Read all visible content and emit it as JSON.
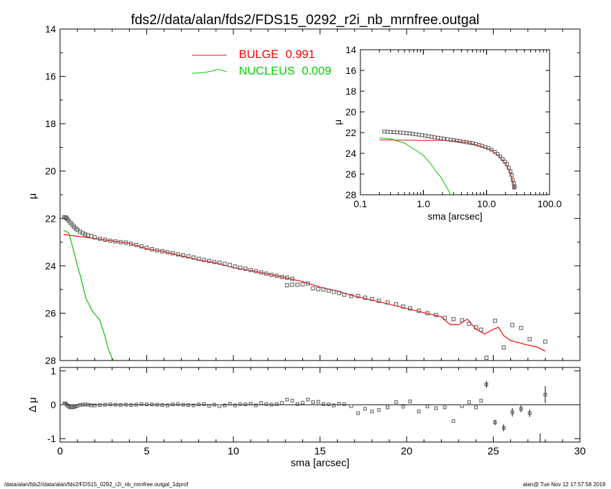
{
  "title": "fds2//data/alan/fds2/FDS15_0292_r2i_nb_mrnfree.outgal",
  "footer": {
    "left": "/data/alan/fds2//data/alan/fds2/FDS15_0292_r2i_nb_mrnfree.outgal_1dprof",
    "right": "alan@  Tue Nov 12 17:57:58 2019"
  },
  "legend": [
    {
      "label": "BULGE",
      "value": "0.991",
      "color": "#ff0000"
    },
    {
      "label": "NUCLEUS",
      "value": "0.009",
      "color": "#00d000"
    }
  ],
  "chart_data": [
    {
      "id": "main",
      "type": "scatter",
      "xlabel": "",
      "ylabel": "μ",
      "xlim": [
        0,
        30
      ],
      "ylim": [
        28,
        14
      ],
      "y_inverted": true,
      "yticks": [
        "14",
        "16",
        "18",
        "20",
        "22",
        "24",
        "26",
        "28"
      ],
      "points": [
        [
          0.24,
          21.95
        ],
        [
          0.3,
          21.95
        ],
        [
          0.36,
          21.98
        ],
        [
          0.42,
          22.03
        ],
        [
          0.5,
          22.1
        ],
        [
          0.6,
          22.18
        ],
        [
          0.7,
          22.27
        ],
        [
          0.8,
          22.35
        ],
        [
          0.9,
          22.42
        ],
        [
          1.0,
          22.48
        ],
        [
          1.15,
          22.56
        ],
        [
          1.3,
          22.62
        ],
        [
          1.45,
          22.67
        ],
        [
          1.6,
          22.71
        ],
        [
          1.8,
          22.75
        ],
        [
          2.0,
          22.8
        ],
        [
          2.3,
          22.86
        ],
        [
          2.6,
          22.9
        ],
        [
          2.9,
          22.94
        ],
        [
          3.2,
          22.97
        ],
        [
          3.5,
          23.0
        ],
        [
          3.8,
          23.02
        ],
        [
          4.1,
          23.07
        ],
        [
          4.4,
          23.12
        ],
        [
          4.7,
          23.18
        ],
        [
          5.0,
          23.24
        ],
        [
          5.3,
          23.3
        ],
        [
          5.6,
          23.35
        ],
        [
          5.9,
          23.39
        ],
        [
          6.2,
          23.43
        ],
        [
          6.5,
          23.47
        ],
        [
          6.8,
          23.52
        ],
        [
          7.1,
          23.56
        ],
        [
          7.4,
          23.6
        ],
        [
          7.7,
          23.65
        ],
        [
          8.0,
          23.7
        ],
        [
          8.3,
          23.75
        ],
        [
          8.6,
          23.79
        ],
        [
          8.9,
          23.84
        ],
        [
          9.2,
          23.87
        ],
        [
          9.5,
          23.92
        ],
        [
          9.8,
          23.96
        ],
        [
          10.1,
          24.03
        ],
        [
          10.4,
          24.08
        ],
        [
          10.7,
          24.12
        ],
        [
          11.0,
          24.18
        ],
        [
          11.3,
          24.23
        ],
        [
          11.6,
          24.28
        ],
        [
          11.9,
          24.33
        ],
        [
          12.2,
          24.38
        ],
        [
          12.5,
          24.42
        ],
        [
          12.8,
          24.47
        ],
        [
          13.1,
          24.5
        ],
        [
          13.4,
          24.55
        ],
        [
          13.1,
          24.82
        ],
        [
          13.4,
          24.8
        ],
        [
          13.7,
          24.8
        ],
        [
          14.0,
          24.78
        ],
        [
          14.3,
          24.75
        ],
        [
          14.6,
          24.95
        ],
        [
          14.9,
          24.98
        ],
        [
          15.2,
          25.0
        ],
        [
          15.5,
          25.05
        ],
        [
          15.8,
          25.1
        ],
        [
          16.1,
          25.15
        ],
        [
          16.4,
          25.22
        ],
        [
          16.8,
          25.28
        ],
        [
          17.2,
          25.28
        ],
        [
          17.6,
          25.35
        ],
        [
          18.0,
          25.4
        ],
        [
          18.4,
          25.48
        ],
        [
          18.9,
          25.55
        ],
        [
          19.4,
          25.62
        ],
        [
          19.8,
          25.72
        ],
        [
          20.2,
          25.8
        ],
        [
          20.7,
          25.9
        ],
        [
          21.2,
          26.0
        ],
        [
          21.7,
          26.08
        ],
        [
          22.2,
          26.2
        ],
        [
          22.7,
          26.25
        ],
        [
          23.2,
          26.3
        ],
        [
          23.6,
          26.45
        ],
        [
          24.0,
          26.6
        ],
        [
          24.3,
          26.7
        ],
        [
          24.6,
          27.88
        ],
        [
          25.1,
          26.32
        ],
        [
          25.6,
          27.45
        ],
        [
          26.1,
          26.5
        ],
        [
          26.6,
          26.62
        ],
        [
          27.1,
          27.1
        ],
        [
          28.0,
          27.2
        ]
      ],
      "lines": [
        {
          "name": "BULGE",
          "color": "#ff0000",
          "points": [
            [
              0.2,
              22.68
            ],
            [
              1.5,
              22.8
            ],
            [
              2.0,
              22.85
            ],
            [
              3.0,
              22.95
            ],
            [
              4.0,
              23.05
            ],
            [
              5.0,
              23.28
            ],
            [
              6.0,
              23.4
            ],
            [
              7.0,
              23.58
            ],
            [
              8.0,
              23.75
            ],
            [
              9.0,
              23.88
            ],
            [
              10.0,
              24.08
            ],
            [
              11.0,
              24.2
            ],
            [
              12.0,
              24.35
            ],
            [
              13.0,
              24.5
            ],
            [
              14.0,
              24.67
            ],
            [
              15.0,
              24.9
            ],
            [
              16.0,
              25.07
            ],
            [
              17.0,
              25.28
            ],
            [
              18.0,
              25.45
            ],
            [
              19.0,
              25.62
            ],
            [
              20.0,
              25.8
            ],
            [
              21.0,
              25.98
            ],
            [
              22.0,
              26.15
            ],
            [
              22.5,
              26.48
            ],
            [
              23.0,
              26.48
            ],
            [
              23.5,
              26.25
            ],
            [
              24.0,
              26.68
            ],
            [
              24.5,
              26.88
            ],
            [
              25.0,
              26.68
            ],
            [
              25.3,
              26.6
            ],
            [
              25.6,
              26.95
            ],
            [
              26.0,
              27.15
            ],
            [
              26.5,
              27.25
            ],
            [
              27.0,
              27.35
            ],
            [
              27.5,
              27.42
            ],
            [
              28.0,
              27.6
            ]
          ]
        },
        {
          "name": "NUCLEUS",
          "color": "#00c000",
          "points": [
            [
              0.2,
              22.5
            ],
            [
              0.5,
              22.6
            ],
            [
              0.8,
              23.4
            ],
            [
              1.0,
              24.0
            ],
            [
              1.2,
              24.5
            ],
            [
              1.5,
              25.4
            ],
            [
              1.9,
              25.95
            ],
            [
              2.3,
              26.3
            ],
            [
              2.6,
              27.0
            ],
            [
              2.8,
              27.55
            ],
            [
              3.0,
              27.9
            ],
            [
              3.1,
              28.0
            ]
          ]
        }
      ]
    },
    {
      "id": "residuals",
      "type": "scatter",
      "xlabel": "sma [arcsec]",
      "ylabel": "Δ μ",
      "xlim": [
        0,
        30
      ],
      "ylim": [
        -1.1,
        1.1
      ],
      "xticks": [
        "0",
        "5",
        "10",
        "15",
        "20",
        "25",
        "30"
      ],
      "yticks": [
        "-1",
        "0",
        "1"
      ],
      "points": [
        [
          0.24,
          0.04
        ],
        [
          0.3,
          0.04
        ],
        [
          0.36,
          0.02
        ],
        [
          0.42,
          -0.02
        ],
        [
          0.5,
          -0.06
        ],
        [
          0.6,
          -0.08
        ],
        [
          0.7,
          -0.08
        ],
        [
          0.8,
          -0.07
        ],
        [
          0.9,
          -0.05
        ],
        [
          1.0,
          -0.03
        ],
        [
          1.15,
          -0.01
        ],
        [
          1.3,
          0.0
        ],
        [
          1.45,
          0.01
        ],
        [
          1.6,
          0.0
        ],
        [
          1.8,
          -0.02
        ],
        [
          2.0,
          -0.02
        ],
        [
          2.3,
          -0.01
        ],
        [
          2.6,
          0.0
        ],
        [
          2.9,
          0.01
        ],
        [
          3.2,
          0.0
        ],
        [
          3.5,
          -0.01
        ],
        [
          3.8,
          0.0
        ],
        [
          4.1,
          -0.01
        ],
        [
          4.4,
          0.0
        ],
        [
          4.7,
          0.02
        ],
        [
          5.0,
          0.01
        ],
        [
          5.3,
          0.01
        ],
        [
          5.6,
          0.0
        ],
        [
          5.9,
          -0.01
        ],
        [
          6.2,
          -0.02
        ],
        [
          6.5,
          0.01
        ],
        [
          6.8,
          0.02
        ],
        [
          7.1,
          0.0
        ],
        [
          7.4,
          -0.01
        ],
        [
          7.7,
          -0.02
        ],
        [
          8.0,
          0.01
        ],
        [
          8.3,
          0.02
        ],
        [
          8.6,
          -0.03
        ],
        [
          8.9,
          0.0
        ],
        [
          9.2,
          -0.04
        ],
        [
          9.5,
          -0.02
        ],
        [
          9.8,
          0.03
        ],
        [
          10.1,
          -0.02
        ],
        [
          10.4,
          0.02
        ],
        [
          10.7,
          0.01
        ],
        [
          11.0,
          0.03
        ],
        [
          11.3,
          -0.02
        ],
        [
          11.6,
          0.05
        ],
        [
          11.9,
          0.02
        ],
        [
          12.2,
          0.0
        ],
        [
          12.5,
          0.02
        ],
        [
          12.8,
          0.05
        ],
        [
          13.1,
          0.15
        ],
        [
          13.4,
          0.12
        ],
        [
          13.7,
          0.02
        ],
        [
          14.0,
          0.06
        ],
        [
          14.3,
          0.15
        ],
        [
          14.6,
          0.08
        ],
        [
          14.9,
          0.09
        ],
        [
          15.2,
          0.02
        ],
        [
          15.5,
          0.01
        ],
        [
          15.8,
          -0.02
        ],
        [
          16.1,
          0.03
        ],
        [
          16.4,
          0.02
        ],
        [
          16.8,
          -0.04
        ],
        [
          17.2,
          -0.25
        ],
        [
          17.6,
          -0.12
        ],
        [
          18.0,
          -0.2
        ],
        [
          18.4,
          -0.15
        ],
        [
          18.9,
          -0.08
        ],
        [
          19.4,
          0.08
        ],
        [
          19.8,
          -0.06
        ],
        [
          20.2,
          0.1
        ],
        [
          20.7,
          -0.2
        ],
        [
          21.2,
          -0.05
        ],
        [
          21.7,
          -0.1
        ],
        [
          22.2,
          -0.08
        ],
        [
          22.7,
          -0.48
        ],
        [
          23.2,
          -0.04
        ],
        [
          23.6,
          0.08
        ],
        [
          24.0,
          -0.08
        ],
        [
          24.3,
          0.12
        ],
        [
          24.6,
          0.6
        ],
        [
          25.1,
          -0.52
        ],
        [
          25.6,
          -0.68
        ],
        [
          26.1,
          -0.22
        ],
        [
          26.6,
          -0.12
        ],
        [
          27.1,
          -0.25
        ],
        [
          28.0,
          0.3
        ]
      ],
      "errorbars": [
        {
          "x": 24.6,
          "lo": 0.5,
          "hi": 0.7
        },
        {
          "x": 25.1,
          "lo": -0.6,
          "hi": -0.44
        },
        {
          "x": 25.6,
          "lo": -0.78,
          "hi": -0.58
        },
        {
          "x": 26.1,
          "lo": -0.35,
          "hi": -0.1
        },
        {
          "x": 26.6,
          "lo": -0.22,
          "hi": -0.02
        },
        {
          "x": 27.1,
          "lo": -0.36,
          "hi": -0.14
        },
        {
          "x": 27.7,
          "lo": -1.1,
          "hi": -0.85
        },
        {
          "x": 28.0,
          "lo": 0.05,
          "hi": 0.55
        }
      ]
    },
    {
      "id": "inset",
      "type": "scatter",
      "xscale": "log",
      "xlabel": "sma [arcsec]",
      "ylabel": "μ",
      "xlim": [
        0.1,
        100
      ],
      "ylim": [
        28,
        14
      ],
      "y_inverted": true,
      "xticks": [
        "0.1",
        "1.0",
        "10.0",
        "100.0"
      ],
      "yticks": [
        "14",
        "16",
        "18",
        "20",
        "22",
        "24",
        "26",
        "28"
      ],
      "points": [
        [
          0.24,
          21.9
        ],
        [
          0.27,
          21.92
        ],
        [
          0.3,
          21.93
        ],
        [
          0.34,
          21.95
        ],
        [
          0.38,
          21.97
        ],
        [
          0.43,
          22.0
        ],
        [
          0.48,
          22.02
        ],
        [
          0.54,
          22.05
        ],
        [
          0.6,
          22.08
        ],
        [
          0.68,
          22.12
        ],
        [
          0.76,
          22.16
        ],
        [
          0.85,
          22.2
        ],
        [
          0.95,
          22.25
        ],
        [
          1.07,
          22.3
        ],
        [
          1.2,
          22.35
        ],
        [
          1.35,
          22.4
        ],
        [
          1.5,
          22.45
        ],
        [
          1.7,
          22.5
        ],
        [
          1.9,
          22.55
        ],
        [
          2.1,
          22.6
        ],
        [
          2.4,
          22.65
        ],
        [
          2.7,
          22.7
        ],
        [
          3.0,
          22.72
        ],
        [
          3.4,
          22.78
        ],
        [
          3.8,
          22.82
        ],
        [
          4.3,
          22.88
        ],
        [
          4.8,
          22.92
        ],
        [
          5.4,
          22.98
        ],
        [
          6.0,
          23.02
        ],
        [
          6.8,
          23.1
        ],
        [
          7.6,
          23.18
        ],
        [
          8.5,
          23.28
        ],
        [
          9.5,
          23.38
        ],
        [
          10.7,
          23.5
        ],
        [
          12.0,
          23.65
        ],
        [
          13.5,
          23.85
        ],
        [
          15.0,
          24.05
        ],
        [
          16.5,
          24.3
        ],
        [
          18.0,
          24.55
        ],
        [
          19.5,
          24.8
        ],
        [
          21.0,
          25.05
        ],
        [
          22.5,
          25.4
        ],
        [
          24.0,
          25.75
        ],
        [
          25.0,
          26.1
        ],
        [
          26.0,
          26.55
        ],
        [
          27.0,
          26.9
        ],
        [
          27.5,
          27.3
        ],
        [
          28.0,
          27.2
        ]
      ],
      "lines": [
        {
          "name": "BULGE",
          "color": "#ff0000",
          "points": [
            [
              0.2,
              22.7
            ],
            [
              1.0,
              22.75
            ],
            [
              2.0,
              22.75
            ],
            [
              3.0,
              22.8
            ],
            [
              5.0,
              22.95
            ],
            [
              8.0,
              23.3
            ],
            [
              12.0,
              23.7
            ],
            [
              16.0,
              24.3
            ],
            [
              20.0,
              25.0
            ],
            [
              24.0,
              25.9
            ],
            [
              26.0,
              26.7
            ],
            [
              28.0,
              27.5
            ]
          ]
        },
        {
          "name": "NUCLEUS",
          "color": "#00c000",
          "points": [
            [
              0.2,
              22.5
            ],
            [
              0.3,
              22.6
            ],
            [
              0.5,
              23.0
            ],
            [
              0.8,
              23.8
            ],
            [
              1.0,
              24.2
            ],
            [
              1.3,
              25.0
            ],
            [
              1.6,
              25.8
            ],
            [
              1.9,
              26.3
            ],
            [
              2.2,
              27.0
            ],
            [
              2.5,
              27.6
            ],
            [
              2.7,
              28.0
            ]
          ]
        }
      ]
    }
  ]
}
